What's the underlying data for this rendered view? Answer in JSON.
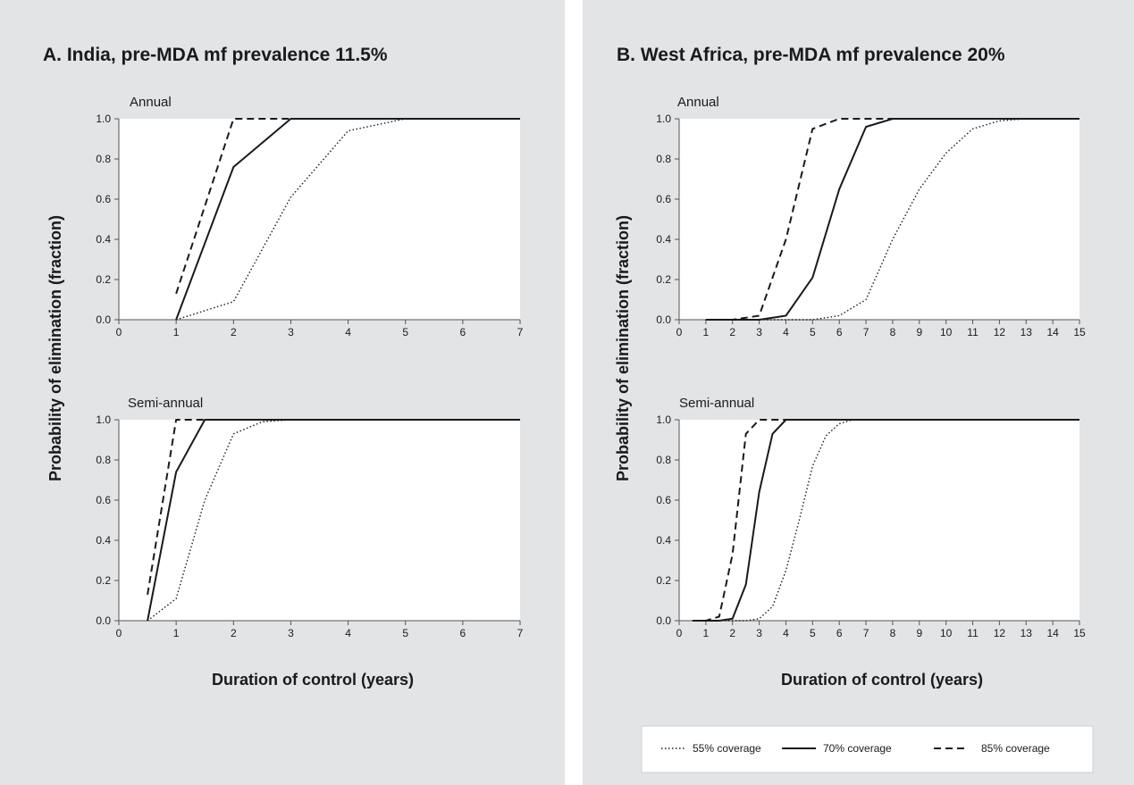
{
  "colors": {
    "panel_bg": "#e3e4e6",
    "plot_bg": "#ffffff",
    "line": "#1a1a1a"
  },
  "styles": {
    "55% coverage": "dotted",
    "70% coverage": "solid",
    "85% coverage": "dashed"
  },
  "legend": {
    "items": [
      "55% coverage",
      "70% coverage",
      "85% coverage"
    ]
  },
  "ylabel": "Probability of elimination (fraction)",
  "xlabel": "Duration of control (years)",
  "panels": [
    {
      "title": "A. India, pre-MDA mf prevalence 11.5%"
    },
    {
      "title": "B. West Africa, pre-MDA mf prevalence 20%"
    }
  ],
  "chart_data": [
    {
      "type": "line",
      "panel": "A. India, pre-MDA mf prevalence 11.5%",
      "title": "Annual",
      "xlim": [
        0,
        7
      ],
      "ylim": [
        0,
        1
      ],
      "xticks": [
        "0",
        "1",
        "2",
        "3",
        "4",
        "5",
        "6",
        "7"
      ],
      "yticks": [
        "0.0",
        "0.2",
        "0.4",
        "0.6",
        "0.8",
        "1.0"
      ],
      "series": [
        {
          "name": "55% coverage",
          "x": [
            1,
            2,
            3,
            4,
            5,
            7
          ],
          "y": [
            0.0,
            0.09,
            0.61,
            0.94,
            1.0,
            1.0
          ]
        },
        {
          "name": "70% coverage",
          "x": [
            1,
            2,
            3,
            7
          ],
          "y": [
            0.0,
            0.76,
            1.0,
            1.0
          ]
        },
        {
          "name": "85% coverage",
          "x": [
            1,
            2,
            7
          ],
          "y": [
            0.13,
            1.0,
            1.0
          ]
        }
      ]
    },
    {
      "type": "line",
      "panel": "A. India, pre-MDA mf prevalence 11.5%",
      "title": "Semi-annual",
      "xlim": [
        0,
        7
      ],
      "ylim": [
        0,
        1
      ],
      "xticks": [
        "0",
        "1",
        "2",
        "3",
        "4",
        "5",
        "6",
        "7"
      ],
      "yticks": [
        "0.0",
        "0.2",
        "0.4",
        "0.6",
        "0.8",
        "1.0"
      ],
      "series": [
        {
          "name": "55% coverage",
          "x": [
            0.5,
            1,
            1.5,
            2,
            2.5,
            3,
            7
          ],
          "y": [
            0.0,
            0.11,
            0.6,
            0.93,
            0.99,
            1.0,
            1.0
          ]
        },
        {
          "name": "70% coverage",
          "x": [
            0.5,
            1,
            1.5,
            7
          ],
          "y": [
            0.0,
            0.74,
            1.0,
            1.0
          ]
        },
        {
          "name": "85% coverage",
          "x": [
            0.5,
            1,
            7
          ],
          "y": [
            0.13,
            1.0,
            1.0
          ]
        }
      ]
    },
    {
      "type": "line",
      "panel": "B. West Africa, pre-MDA mf prevalence 20%",
      "title": "Annual",
      "xlim": [
        0,
        15
      ],
      "ylim": [
        0,
        1
      ],
      "xticks": [
        "0",
        "1",
        "2",
        "3",
        "4",
        "5",
        "6",
        "7",
        "8",
        "9",
        "10",
        "11",
        "12",
        "13",
        "14",
        "15"
      ],
      "yticks": [
        "0.0",
        "0.2",
        "0.4",
        "0.6",
        "0.8",
        "1.0"
      ],
      "series": [
        {
          "name": "55% coverage",
          "x": [
            1,
            2,
            3,
            4,
            5,
            6,
            7,
            8,
            9,
            10,
            11,
            12,
            13,
            15
          ],
          "y": [
            0.0,
            0.0,
            0.0,
            0.0,
            0.0,
            0.02,
            0.1,
            0.4,
            0.65,
            0.83,
            0.95,
            0.99,
            1.0,
            1.0
          ]
        },
        {
          "name": "70% coverage",
          "x": [
            1,
            2,
            3,
            4,
            5,
            6,
            7,
            8,
            9,
            15
          ],
          "y": [
            0.0,
            0.0,
            0.0,
            0.02,
            0.21,
            0.65,
            0.96,
            1.0,
            1.0,
            1.0
          ]
        },
        {
          "name": "85% coverage",
          "x": [
            1,
            2,
            3,
            4,
            5,
            6,
            7,
            15
          ],
          "y": [
            0.0,
            0.0,
            0.02,
            0.4,
            0.95,
            1.0,
            1.0,
            1.0
          ]
        }
      ]
    },
    {
      "type": "line",
      "panel": "B. West Africa, pre-MDA mf prevalence 20%",
      "title": "Semi-annual",
      "xlim": [
        0,
        15
      ],
      "ylim": [
        0,
        1
      ],
      "xticks": [
        "0",
        "1",
        "2",
        "3",
        "4",
        "5",
        "6",
        "7",
        "8",
        "9",
        "10",
        "11",
        "12",
        "13",
        "14",
        "15"
      ],
      "yticks": [
        "0.0",
        "0.2",
        "0.4",
        "0.6",
        "0.8",
        "1.0"
      ],
      "series": [
        {
          "name": "55% coverage",
          "x": [
            0.5,
            1,
            1.5,
            2,
            2.5,
            3,
            3.5,
            4,
            4.5,
            5,
            5.5,
            6,
            6.5,
            7,
            15
          ],
          "y": [
            0.0,
            0.0,
            0.0,
            0.0,
            0.0,
            0.01,
            0.07,
            0.25,
            0.5,
            0.77,
            0.92,
            0.98,
            1.0,
            1.0,
            1.0
          ]
        },
        {
          "name": "70% coverage",
          "x": [
            0.5,
            1,
            1.5,
            2,
            2.5,
            3,
            3.5,
            4,
            15
          ],
          "y": [
            0.0,
            0.0,
            0.0,
            0.01,
            0.18,
            0.64,
            0.93,
            1.0,
            1.0
          ]
        },
        {
          "name": "85% coverage",
          "x": [
            0.5,
            1,
            1.5,
            2,
            2.5,
            3,
            15
          ],
          "y": [
            0.0,
            0.0,
            0.02,
            0.33,
            0.93,
            1.0,
            1.0
          ]
        }
      ]
    }
  ]
}
